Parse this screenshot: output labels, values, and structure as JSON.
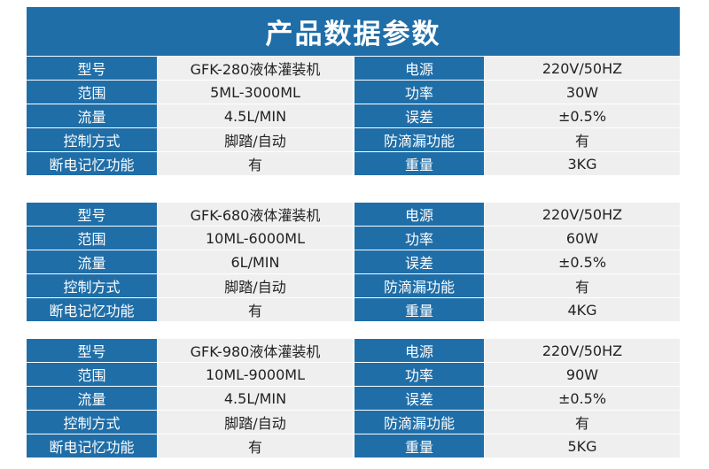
{
  "title": "产品数据参数",
  "tables": [
    {
      "rows": [
        [
          "型号",
          "GFK-280液体灌装机",
          "电源",
          "220V/50HZ"
        ],
        [
          "范围",
          "5ML-3000ML",
          "功率",
          "30W"
        ],
        [
          "流量",
          "4.5L/MIN",
          "误差",
          "±0.5%"
        ],
        [
          "控制方式",
          "脚踏/自动",
          "防滴漏功能",
          "有"
        ],
        [
          "断电记忆功能",
          "有",
          "重量",
          "3KG"
        ]
      ]
    },
    {
      "rows": [
        [
          "型号",
          "GFK-680液体灌装机",
          "电源",
          "220V/50HZ"
        ],
        [
          "范围",
          "10ML-6000ML",
          "功率",
          "60W"
        ],
        [
          "流量",
          "6L/MIN",
          "误差",
          "±0.5%"
        ],
        [
          "控制方式",
          "脚踏/自动",
          "防滴漏功能",
          "有"
        ],
        [
          "断电记忆功能",
          "有",
          "重量",
          "4KG"
        ]
      ]
    },
    {
      "rows": [
        [
          "型号",
          "GFK-980液体灌装机",
          "电源",
          "220V/50HZ"
        ],
        [
          "范围",
          "10ML-9000ML",
          "功率",
          "90W"
        ],
        [
          "流量",
          "4.5L/MIN",
          "误差",
          "±0.5%"
        ],
        [
          "控制方式",
          "脚踏/自动",
          "防滴漏功能",
          "有"
        ],
        [
          "断电记忆功能",
          "有",
          "重量",
          "5KG"
        ]
      ]
    }
  ],
  "colors": {
    "header_blue": "#1f6ea8",
    "value_gray": "#efefef",
    "text_dark": "#222222"
  }
}
